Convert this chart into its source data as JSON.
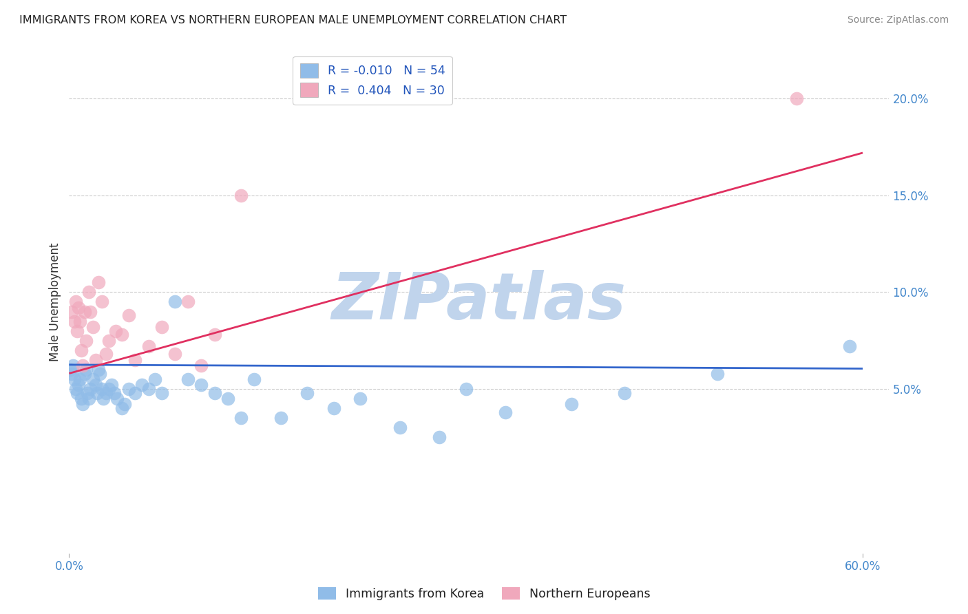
{
  "title": "IMMIGRANTS FROM KOREA VS NORTHERN EUROPEAN MALE UNEMPLOYMENT CORRELATION CHART",
  "source": "Source: ZipAtlas.com",
  "ylabel": "Male Unemployment",
  "xlim": [
    0.0,
    0.62
  ],
  "ylim": [
    -0.035,
    0.225
  ],
  "xticks": [
    0.0,
    0.6
  ],
  "xticklabels": [
    "0.0%",
    "60.0%"
  ],
  "yticks_right": [
    0.05,
    0.1,
    0.15,
    0.2
  ],
  "yticklabels_right": [
    "5.0%",
    "10.0%",
    "15.0%",
    "20.0%"
  ],
  "grid_color": "#cccccc",
  "watermark": "ZIPatlas",
  "watermark_color": "#c0d4ec",
  "blue_color": "#90bce8",
  "pink_color": "#f0a8bc",
  "blue_line_color": "#3366cc",
  "pink_line_color": "#e03060",
  "legend_r1": "R = -0.010",
  "legend_n1": "N = 54",
  "legend_r2": "R =  0.404",
  "legend_n2": "N = 30",
  "label1": "Immigrants from Korea",
  "label2": "Northern Europeans",
  "korea_x": [
    0.001,
    0.002,
    0.003,
    0.004,
    0.005,
    0.006,
    0.007,
    0.008,
    0.009,
    0.01,
    0.012,
    0.013,
    0.014,
    0.015,
    0.016,
    0.018,
    0.02,
    0.021,
    0.022,
    0.023,
    0.025,
    0.026,
    0.028,
    0.03,
    0.032,
    0.034,
    0.036,
    0.04,
    0.042,
    0.045,
    0.05,
    0.055,
    0.06,
    0.065,
    0.07,
    0.08,
    0.09,
    0.1,
    0.11,
    0.12,
    0.13,
    0.14,
    0.16,
    0.18,
    0.2,
    0.22,
    0.25,
    0.28,
    0.3,
    0.33,
    0.38,
    0.42,
    0.49,
    0.59
  ],
  "korea_y": [
    0.06,
    0.058,
    0.062,
    0.055,
    0.05,
    0.048,
    0.052,
    0.055,
    0.045,
    0.042,
    0.058,
    0.06,
    0.048,
    0.045,
    0.05,
    0.055,
    0.052,
    0.048,
    0.06,
    0.058,
    0.05,
    0.045,
    0.048,
    0.05,
    0.052,
    0.048,
    0.045,
    0.04,
    0.042,
    0.05,
    0.048,
    0.052,
    0.05,
    0.055,
    0.048,
    0.095,
    0.055,
    0.052,
    0.048,
    0.045,
    0.035,
    0.055,
    0.035,
    0.048,
    0.04,
    0.045,
    0.03,
    0.025,
    0.05,
    0.038,
    0.042,
    0.048,
    0.058,
    0.072
  ],
  "ne_x": [
    0.002,
    0.004,
    0.005,
    0.006,
    0.007,
    0.008,
    0.009,
    0.01,
    0.012,
    0.013,
    0.015,
    0.016,
    0.018,
    0.02,
    0.022,
    0.025,
    0.028,
    0.03,
    0.035,
    0.04,
    0.045,
    0.05,
    0.06,
    0.07,
    0.08,
    0.09,
    0.1,
    0.11,
    0.13,
    0.55
  ],
  "ne_y": [
    0.09,
    0.085,
    0.095,
    0.08,
    0.092,
    0.085,
    0.07,
    0.062,
    0.09,
    0.075,
    0.1,
    0.09,
    0.082,
    0.065,
    0.105,
    0.095,
    0.068,
    0.075,
    0.08,
    0.078,
    0.088,
    0.065,
    0.072,
    0.082,
    0.068,
    0.095,
    0.062,
    0.078,
    0.15,
    0.2
  ],
  "blue_trend_start_y": 0.0625,
  "blue_trend_end_y": 0.0605,
  "pink_trend_start_y": 0.058,
  "pink_trend_end_y": 0.172
}
